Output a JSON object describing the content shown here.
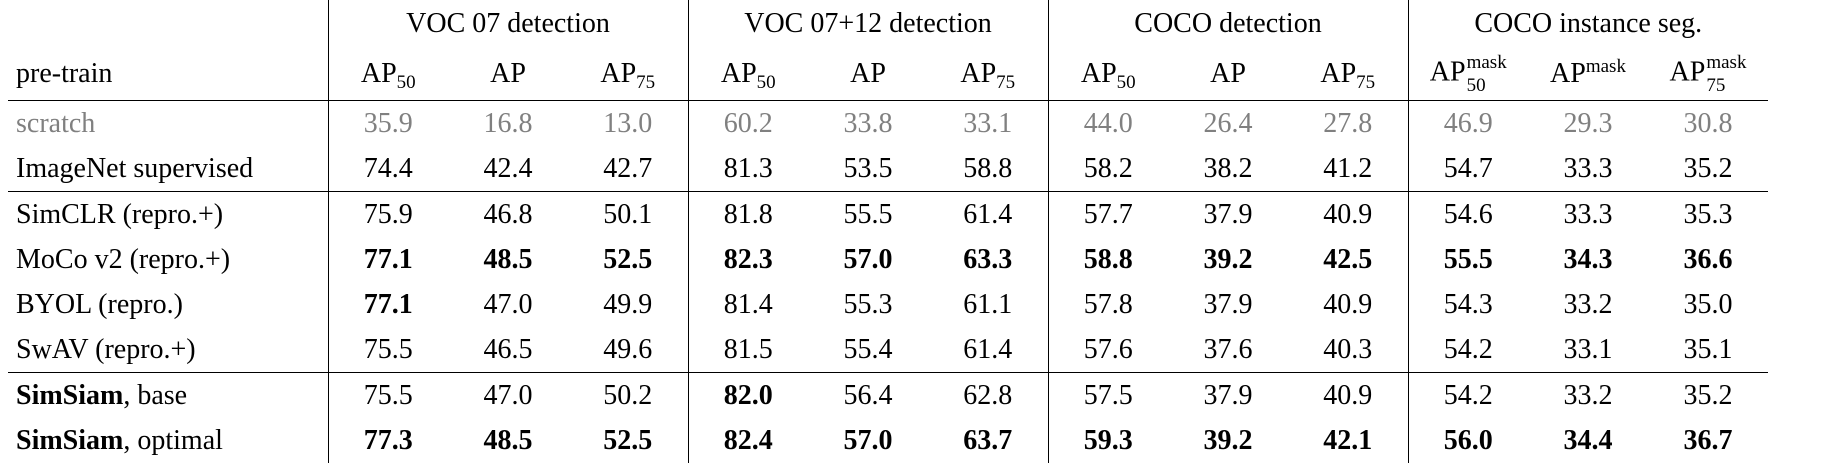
{
  "header": {
    "name_col": "pre-train",
    "groups": [
      "VOC 07 detection",
      "VOC 07+12 detection",
      "COCO detection",
      "COCO instance seg."
    ],
    "metric_base": "AP",
    "sub50": "50",
    "sub75": "75",
    "mask_sup": "mask"
  },
  "rows": [
    {
      "name": "scratch",
      "values": [
        "35.9",
        "16.8",
        "13.0",
        "60.2",
        "33.8",
        "33.1",
        "44.0",
        "26.4",
        "27.8",
        "46.9",
        "29.3",
        "30.8"
      ]
    },
    {
      "name": "ImageNet supervised",
      "values": [
        "74.4",
        "42.4",
        "42.7",
        "81.3",
        "53.5",
        "58.8",
        "58.2",
        "38.2",
        "41.2",
        "54.7",
        "33.3",
        "35.2"
      ]
    },
    {
      "name": "SimCLR (repro.+)",
      "values": [
        "75.9",
        "46.8",
        "50.1",
        "81.8",
        "55.5",
        "61.4",
        "57.7",
        "37.9",
        "40.9",
        "54.6",
        "33.3",
        "35.3"
      ]
    },
    {
      "name": "MoCo v2 (repro.+)",
      "values": [
        "77.1",
        "48.5",
        "52.5",
        "82.3",
        "57.0",
        "63.3",
        "58.8",
        "39.2",
        "42.5",
        "55.5",
        "34.3",
        "36.6"
      ]
    },
    {
      "name": "BYOL (repro.)",
      "values": [
        "77.1",
        "47.0",
        "49.9",
        "81.4",
        "55.3",
        "61.1",
        "57.8",
        "37.9",
        "40.9",
        "54.3",
        "33.2",
        "35.0"
      ]
    },
    {
      "name": "SwAV (repro.+)",
      "values": [
        "75.5",
        "46.5",
        "49.6",
        "81.5",
        "55.4",
        "61.4",
        "57.6",
        "37.6",
        "40.3",
        "54.2",
        "33.1",
        "35.1"
      ]
    },
    {
      "name_bold": "SimSiam",
      "name_rest": ", base",
      "values": [
        "75.5",
        "47.0",
        "50.2",
        "82.0",
        "56.4",
        "62.8",
        "57.5",
        "37.9",
        "40.9",
        "54.2",
        "33.2",
        "35.2"
      ]
    },
    {
      "name_bold": "SimSiam",
      "name_rest": ", optimal",
      "values": [
        "77.3",
        "48.5",
        "52.5",
        "82.4",
        "57.0",
        "63.7",
        "59.3",
        "39.2",
        "42.1",
        "56.0",
        "34.4",
        "36.7"
      ]
    }
  ]
}
